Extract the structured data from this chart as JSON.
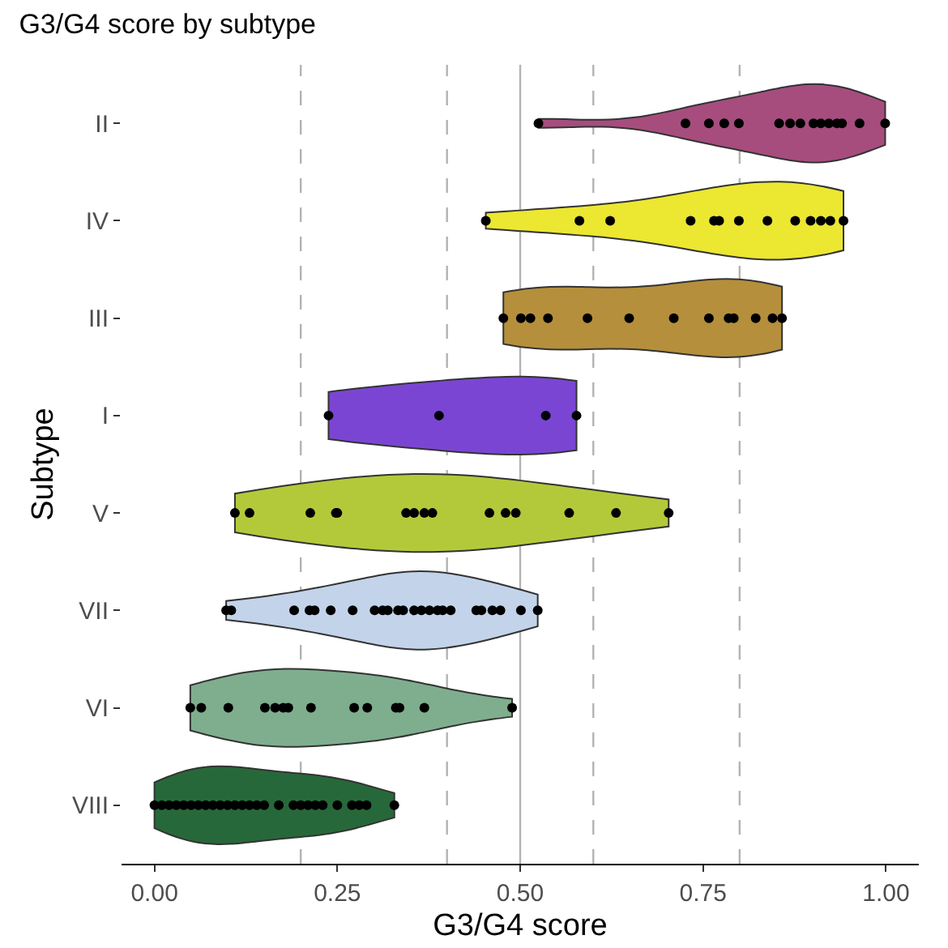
{
  "chart_data": {
    "type": "scatter",
    "title": "G3/G4 score by subtype",
    "xlabel": "G3/G4 score",
    "ylabel": "Subtype",
    "orientation": "horizontal",
    "marker": "circle",
    "categories": [
      "II",
      "IV",
      "III",
      "I",
      "V",
      "VII",
      "VI",
      "VIII"
    ],
    "colors": [
      "#a64d7e",
      "#ece731",
      "#b58f3c",
      "#7b45d3",
      "#b4c93a",
      "#c3d3ea",
      "#7fae8e",
      "#27683a"
    ],
    "xlim": [
      -0.045,
      1.045
    ],
    "xticks": [
      {
        "value": 0,
        "label": "0.00"
      },
      {
        "value": 0.25,
        "label": "0.25"
      },
      {
        "value": 0.5,
        "label": "0.50"
      },
      {
        "value": 0.75,
        "label": "0.75"
      },
      {
        "value": 1,
        "label": "1.00"
      }
    ],
    "ref_lines": [
      {
        "axis": "x",
        "value": 0.2,
        "color": "#b3b3b3",
        "line_style": "dashed"
      },
      {
        "axis": "x",
        "value": 0.4,
        "color": "#b3b3b3",
        "line_style": "dashed"
      },
      {
        "axis": "x",
        "value": 0.5,
        "color": "#b3b3b3",
        "line_style": "solid"
      },
      {
        "axis": "x",
        "value": 0.6,
        "color": "#b3b3b3",
        "line_style": "dashed"
      },
      {
        "axis": "x",
        "value": 0.8,
        "color": "#b3b3b3",
        "line_style": "dashed"
      }
    ],
    "series": [
      {
        "color": "#000000",
        "x": [
          "II",
          "II",
          "II",
          "II",
          "II",
          "II",
          "II",
          "II",
          "II",
          "II",
          "II",
          "II",
          "II",
          "II",
          "II"
        ],
        "values": [
          0.525,
          0.726,
          0.758,
          0.779,
          0.799,
          0.854,
          0.869,
          0.883,
          0.901,
          0.911,
          0.922,
          0.933,
          0.94,
          0.964,
          0.999
        ]
      },
      {
        "color": "#000000",
        "x": [
          "IV",
          "IV",
          "IV",
          "IV",
          "IV",
          "IV",
          "IV",
          "IV",
          "IV",
          "IV",
          "IV",
          "IV",
          "IV"
        ],
        "values": [
          0.453,
          0.581,
          0.623,
          0.733,
          0.765,
          0.772,
          0.799,
          0.838,
          0.876,
          0.897,
          0.911,
          0.924,
          0.942
        ]
      },
      {
        "color": "#000000",
        "x": [
          "III",
          "III",
          "III",
          "III",
          "III",
          "III",
          "III",
          "III",
          "III",
          "III",
          "III",
          "III",
          "III"
        ],
        "values": [
          0.477,
          0.501,
          0.514,
          0.538,
          0.592,
          0.649,
          0.71,
          0.758,
          0.785,
          0.792,
          0.822,
          0.845,
          0.858
        ]
      },
      {
        "color": "#000000",
        "x": [
          "I",
          "I",
          "I",
          "I"
        ],
        "values": [
          0.238,
          0.389,
          0.535,
          0.577
        ]
      },
      {
        "color": "#000000",
        "x": [
          "V",
          "V",
          "V",
          "V",
          "V",
          "V",
          "V",
          "V",
          "V",
          "V",
          "V",
          "V",
          "V",
          "V",
          "V"
        ],
        "values": [
          0.11,
          0.13,
          0.213,
          0.248,
          0.25,
          0.344,
          0.355,
          0.369,
          0.38,
          0.458,
          0.48,
          0.494,
          0.567,
          0.631,
          0.703
        ]
      },
      {
        "color": "#000000",
        "x": [
          "VII",
          "VII",
          "VII",
          "VII",
          "VII",
          "VII",
          "VII",
          "VII",
          "VII",
          "VII",
          "VII",
          "VII",
          "VII",
          "VII",
          "VII",
          "VII",
          "VII",
          "VII",
          "VII",
          "VII",
          "VII",
          "VII",
          "VII",
          "VII"
        ],
        "values": [
          0.098,
          0.105,
          0.191,
          0.212,
          0.219,
          0.241,
          0.271,
          0.301,
          0.312,
          0.319,
          0.333,
          0.34,
          0.355,
          0.365,
          0.376,
          0.387,
          0.394,
          0.405,
          0.44,
          0.447,
          0.462,
          0.473,
          0.501,
          0.524
        ]
      },
      {
        "color": "#000000",
        "x": [
          "VI",
          "VI",
          "VI",
          "VI",
          "VI",
          "VI",
          "VI",
          "VI",
          "VI",
          "VI",
          "VI",
          "VI",
          "VI",
          "VI"
        ],
        "values": [
          0.049,
          0.064,
          0.101,
          0.151,
          0.165,
          0.176,
          0.183,
          0.214,
          0.273,
          0.291,
          0.33,
          0.335,
          0.369,
          0.489
        ]
      },
      {
        "color": "#000000",
        "x": [
          "VIII",
          "VIII",
          "VIII",
          "VIII",
          "VIII",
          "VIII",
          "VIII",
          "VIII",
          "VIII",
          "VIII",
          "VIII",
          "VIII",
          "VIII",
          "VIII",
          "VIII",
          "VIII",
          "VIII",
          "VIII",
          "VIII",
          "VIII",
          "VIII",
          "VIII",
          "VIII",
          "VIII",
          "VIII",
          "VIII",
          "VIII"
        ],
        "values": [
          0.0,
          0.01,
          0.02,
          0.03,
          0.04,
          0.05,
          0.06,
          0.07,
          0.08,
          0.09,
          0.1,
          0.11,
          0.12,
          0.13,
          0.14,
          0.15,
          0.17,
          0.19,
          0.2,
          0.21,
          0.22,
          0.23,
          0.25,
          0.27,
          0.28,
          0.29,
          0.328
        ]
      }
    ]
  }
}
